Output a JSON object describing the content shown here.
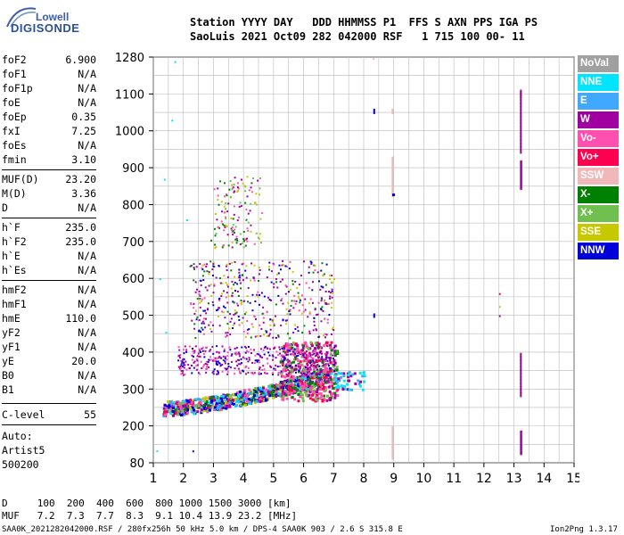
{
  "logo": {
    "line1": "Lowell",
    "line2": "DIGISONDE"
  },
  "header": {
    "row1": "Station YYYY DAY   DDD HHMMSS P1  FFS S AXN PPS IGA PS",
    "row2": "SaoLuis 2021 Oct09 282 042000 RSF   1 715 100 00- 11"
  },
  "params": [
    {
      "name": "foF2",
      "value": "6.900"
    },
    {
      "name": "foF1",
      "value": "N/A"
    },
    {
      "name": "foF1p",
      "value": "N/A"
    },
    {
      "name": "foE",
      "value": "N/A"
    },
    {
      "name": "foEp",
      "value": "0.35"
    },
    {
      "name": "fxI",
      "value": "7.25"
    },
    {
      "name": "foEs",
      "value": "N/A"
    },
    {
      "name": "fmin",
      "value": "3.10"
    },
    {
      "name": "MUF(D)",
      "value": "23.20"
    },
    {
      "name": "M(D)",
      "value": "3.36"
    },
    {
      "name": "D",
      "value": "N/A"
    },
    {
      "name": "h`F",
      "value": "235.0"
    },
    {
      "name": "h`F2",
      "value": "235.0"
    },
    {
      "name": "h`E",
      "value": "N/A"
    },
    {
      "name": "h`Es",
      "value": "N/A"
    },
    {
      "name": "hmF2",
      "value": "N/A"
    },
    {
      "name": "hmF1",
      "value": "N/A"
    },
    {
      "name": "hmE",
      "value": "110.0"
    },
    {
      "name": "yF2",
      "value": "N/A"
    },
    {
      "name": "yF1",
      "value": "N/A"
    },
    {
      "name": "yE",
      "value": "20.0"
    },
    {
      "name": "B0",
      "value": "N/A"
    },
    {
      "name": "B1",
      "value": "N/A"
    },
    {
      "name": "C-level",
      "value": "55"
    }
  ],
  "auto": {
    "line1": "Auto:",
    "line2": "Artist5",
    "line3": "500200"
  },
  "legend": [
    {
      "label": "NoVal",
      "color": "#a0a0a0"
    },
    {
      "label": "NNE",
      "color": "#00e5ff"
    },
    {
      "label": "E",
      "color": "#40a8ff"
    },
    {
      "label": "W",
      "color": "#a000a0"
    },
    {
      "label": "Vo-",
      "color": "#ff50b0"
    },
    {
      "label": "Vo+",
      "color": "#ff0050"
    },
    {
      "label": "SSW",
      "color": "#f0b8b8"
    },
    {
      "label": "X-",
      "color": "#008000"
    },
    {
      "label": "X+",
      "color": "#70c050"
    },
    {
      "label": "SSE",
      "color": "#c8c800"
    },
    {
      "label": "NNW",
      "color": "#0000d8"
    }
  ],
  "chart_data": {
    "type": "scatter",
    "x_ticks": [
      "1",
      "2",
      "3",
      "4",
      "5",
      "6",
      "7",
      "8",
      "9",
      "10",
      "11",
      "12",
      "13",
      "14",
      "15"
    ],
    "y_ticks": [
      "80",
      "200",
      "300",
      "400",
      "500",
      "600",
      "700",
      "800",
      "900",
      "1000",
      "1100",
      "1280"
    ],
    "xlim": [
      1,
      15
    ],
    "ylim": [
      80,
      1280
    ],
    "grid": true,
    "description_visible": "ionogram echo traces"
  },
  "bottom": {
    "row1": "D     100  200  400  600  800 1000 1500 3000 [km]",
    "row2": "MUF   7.2  7.3  7.7  8.3  9.1 10.4 13.9 23.2 [MHz]",
    "footer": "SAA0K_2021282042000.RSF / 280fx256h 50 kHz 5.0 km / DPS-4 SAA0K 903 / 2.6 S 315.8 E",
    "version": "Ion2Png 1.3.17"
  }
}
